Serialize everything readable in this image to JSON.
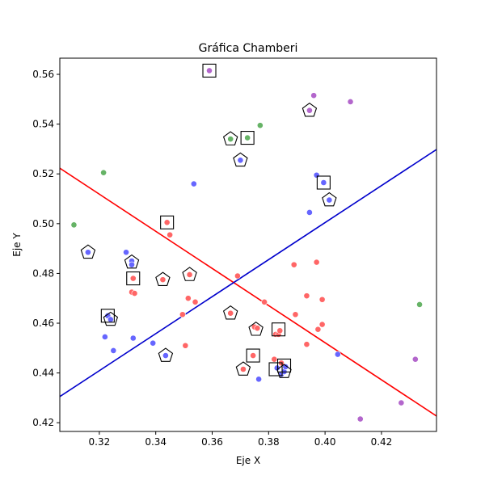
{
  "chart_data": {
    "type": "scatter",
    "title": "Gráfica Chamberi",
    "xlabel": "Eje X",
    "ylabel": "Eje Y",
    "xlim": [
      0.306,
      0.4395
    ],
    "ylim": [
      0.4165,
      0.5665
    ],
    "x_ticks": [
      0.32,
      0.34,
      0.36,
      0.38,
      0.4,
      0.42
    ],
    "y_ticks": [
      0.42,
      0.44,
      0.46,
      0.48,
      0.5,
      0.52,
      0.54,
      0.56
    ],
    "grid": false,
    "colors": {
      "red": "#ff6666",
      "blue": "#6666ff",
      "green": "#66b366",
      "purple": "#b366cc",
      "line_red": "#ff0000",
      "line_blue": "#0000cc"
    },
    "series": [
      {
        "color": "red",
        "points": [
          [
            0.344,
            0.5005
          ],
          [
            0.345,
            0.4955
          ],
          [
            0.332,
            0.478
          ],
          [
            0.3315,
            0.4725
          ],
          [
            0.3325,
            0.472
          ],
          [
            0.3425,
            0.4775
          ],
          [
            0.352,
            0.4795
          ],
          [
            0.369,
            0.479
          ],
          [
            0.3515,
            0.47
          ],
          [
            0.354,
            0.4685
          ],
          [
            0.3495,
            0.4635
          ],
          [
            0.3505,
            0.451
          ],
          [
            0.3665,
            0.464
          ],
          [
            0.375,
            0.4585
          ],
          [
            0.376,
            0.458
          ],
          [
            0.3785,
            0.4685
          ],
          [
            0.3825,
            0.4555
          ],
          [
            0.3835,
            0.4555
          ],
          [
            0.384,
            0.457
          ],
          [
            0.382,
            0.4455
          ],
          [
            0.3845,
            0.444
          ],
          [
            0.3745,
            0.447
          ],
          [
            0.371,
            0.4415
          ],
          [
            0.389,
            0.4835
          ],
          [
            0.397,
            0.4845
          ],
          [
            0.3935,
            0.471
          ],
          [
            0.399,
            0.4695
          ],
          [
            0.3895,
            0.4635
          ],
          [
            0.3975,
            0.4575
          ],
          [
            0.399,
            0.4595
          ],
          [
            0.3935,
            0.4515
          ]
        ]
      },
      {
        "color": "blue",
        "points": [
          [
            0.316,
            0.4885
          ],
          [
            0.3295,
            0.4885
          ],
          [
            0.3315,
            0.485
          ],
          [
            0.3315,
            0.4835
          ],
          [
            0.323,
            0.463
          ],
          [
            0.324,
            0.4615
          ],
          [
            0.322,
            0.4545
          ],
          [
            0.325,
            0.449
          ],
          [
            0.332,
            0.454
          ],
          [
            0.339,
            0.452
          ],
          [
            0.3435,
            0.447
          ],
          [
            0.3535,
            0.516
          ],
          [
            0.37,
            0.5255
          ],
          [
            0.3945,
            0.5045
          ],
          [
            0.397,
            0.5195
          ],
          [
            0.3995,
            0.5165
          ],
          [
            0.4015,
            0.5095
          ],
          [
            0.3765,
            0.4375
          ],
          [
            0.383,
            0.442
          ],
          [
            0.3845,
            0.4395
          ],
          [
            0.3855,
            0.4405
          ],
          [
            0.386,
            0.4425
          ],
          [
            0.4045,
            0.4475
          ]
        ]
      },
      {
        "color": "green",
        "points": [
          [
            0.311,
            0.4995
          ],
          [
            0.3215,
            0.5205
          ],
          [
            0.3665,
            0.534
          ],
          [
            0.3725,
            0.5345
          ],
          [
            0.377,
            0.5395
          ],
          [
            0.4335,
            0.4675
          ]
        ]
      },
      {
        "color": "purple",
        "points": [
          [
            0.359,
            0.5615
          ],
          [
            0.3945,
            0.5455
          ],
          [
            0.396,
            0.5515
          ],
          [
            0.409,
            0.549
          ],
          [
            0.4125,
            0.4215
          ],
          [
            0.427,
            0.428
          ],
          [
            0.432,
            0.4455
          ]
        ]
      }
    ],
    "square_markers": [
      [
        0.359,
        0.5615
      ],
      [
        0.3725,
        0.5345
      ],
      [
        0.3995,
        0.5165
      ],
      [
        0.344,
        0.5005
      ],
      [
        0.332,
        0.478
      ],
      [
        0.323,
        0.463
      ],
      [
        0.3835,
        0.4575
      ],
      [
        0.3745,
        0.447
      ],
      [
        0.3825,
        0.4415
      ],
      [
        0.3855,
        0.443
      ]
    ],
    "pentagon_markers": [
      [
        0.3665,
        0.534
      ],
      [
        0.37,
        0.5255
      ],
      [
        0.3945,
        0.5455
      ],
      [
        0.4015,
        0.5095
      ],
      [
        0.316,
        0.4885
      ],
      [
        0.3315,
        0.4845
      ],
      [
        0.3425,
        0.4775
      ],
      [
        0.352,
        0.4795
      ],
      [
        0.3665,
        0.464
      ],
      [
        0.324,
        0.4615
      ],
      [
        0.3755,
        0.4575
      ],
      [
        0.3435,
        0.447
      ],
      [
        0.371,
        0.4415
      ],
      [
        0.3855,
        0.4405
      ]
    ],
    "lines": [
      {
        "color": "line_red",
        "x": [
          0.306,
          0.4395
        ],
        "y": [
          0.5223,
          0.4227
        ]
      },
      {
        "color": "line_blue",
        "x": [
          0.306,
          0.4395
        ],
        "y": [
          0.4305,
          0.5298
        ]
      }
    ]
  }
}
